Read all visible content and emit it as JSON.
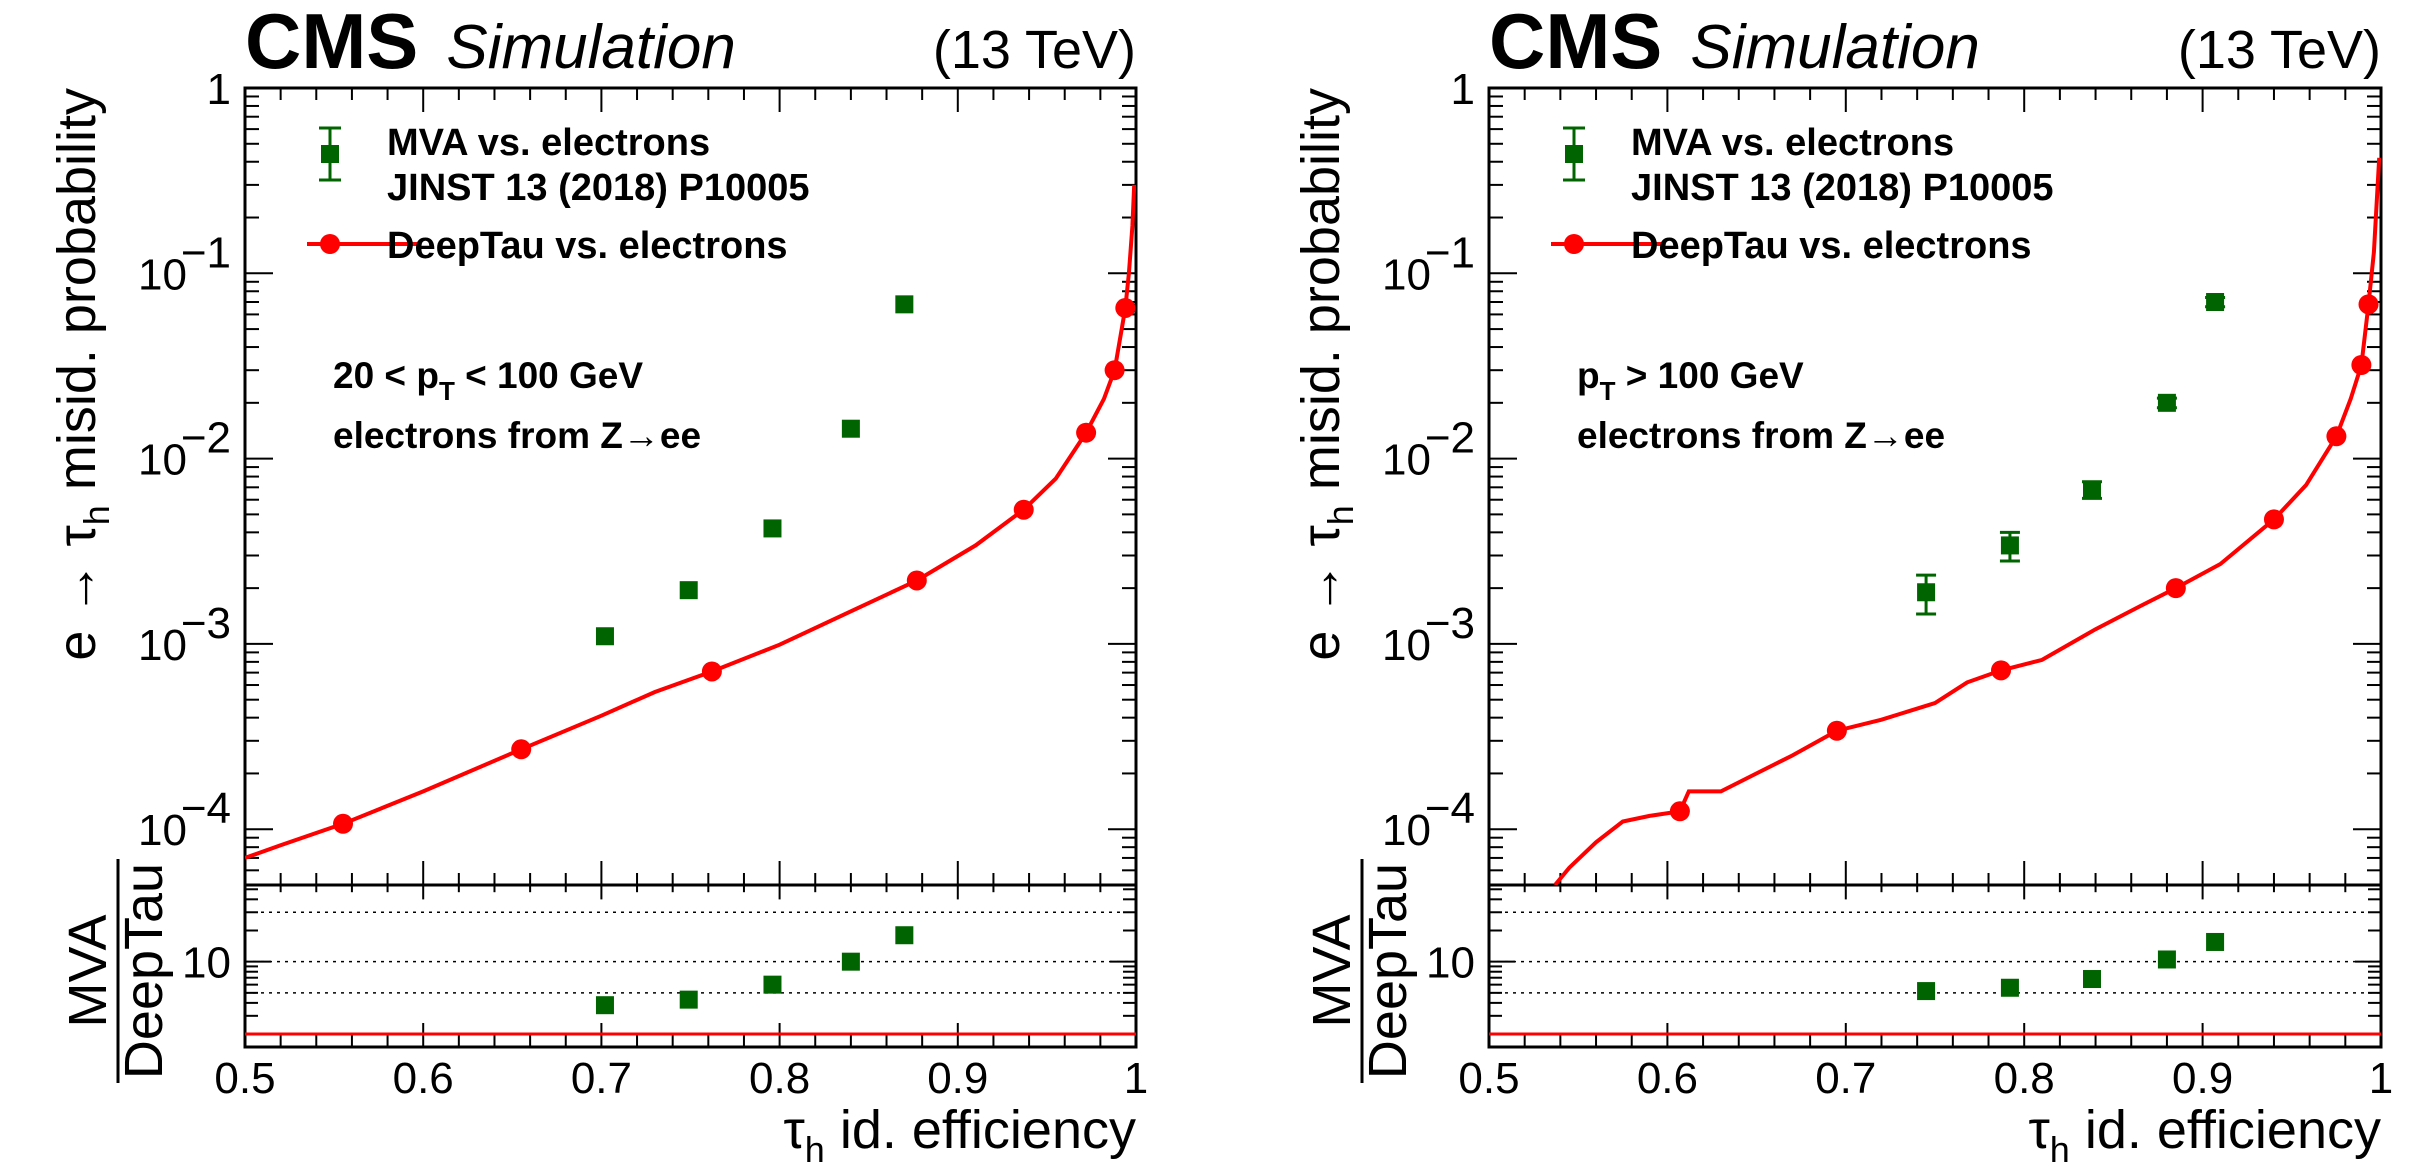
{
  "chart_data": [
    {
      "type": "line",
      "header": {
        "experiment": "CMS",
        "label": "Simulation",
        "energy": "(13 TeV)"
      },
      "ylabel_prefix": "e → τ",
      "ylabel_sub": "h",
      "ylabel_suffix": " misid. probability",
      "xlabel_prefix": "τ",
      "xlabel_sub": "h",
      "xlabel_suffix": " id. efficiency",
      "ratio_ylabel": {
        "numerator": "MVA",
        "denominator": "DeepTau"
      },
      "xlim": [
        0.5,
        1.0
      ],
      "ylim": [
        5e-05,
        1
      ],
      "yscale": "log",
      "ratio_ylim": [
        1.5,
        55
      ],
      "ratio_yscale": "log",
      "ratio_gridlines": [
        5,
        10,
        30
      ],
      "x_ticks": [
        "0.5",
        "0.6",
        "0.7",
        "0.8",
        "0.9",
        "1"
      ],
      "y_ticks": [
        {
          "base": "1",
          "exp": ""
        },
        {
          "base": "10",
          "exp": "−1"
        },
        {
          "base": "10",
          "exp": "−2"
        },
        {
          "base": "10",
          "exp": "−3"
        },
        {
          "base": "10",
          "exp": "−4"
        }
      ],
      "ratio_tick": "10",
      "legend": [
        {
          "line1": "MVA vs. electrons",
          "line2": "JINST 13 (2018) P10005",
          "color": "#006400"
        },
        {
          "line1": "DeepTau vs. electrons",
          "line2": "",
          "color": "#ff0000"
        }
      ],
      "annotation": {
        "line1_prefix": "20 < p",
        "line1_sub": "T",
        "line1_suffix": " < 100 GeV",
        "line2": "electrons from Z→ee"
      },
      "series": [
        {
          "name": "MVA vs. electrons",
          "color": "#006400",
          "marker": "square",
          "points": [
            {
              "x": 0.702,
              "y": 0.0011,
              "err": 0
            },
            {
              "x": 0.749,
              "y": 0.00195,
              "err": 0
            },
            {
              "x": 0.796,
              "y": 0.0042,
              "err": 0
            },
            {
              "x": 0.84,
              "y": 0.0145,
              "err": 0
            },
            {
              "x": 0.87,
              "y": 0.068,
              "err": 0
            }
          ],
          "ratio": [
            3.8,
            4.3,
            6.0,
            10.0,
            18.0
          ]
        },
        {
          "name": "DeepTau vs. electrons",
          "color": "#ff0000",
          "curve": [
            [
              0.5,
              7e-05
            ],
            [
              0.52,
              8.2e-05
            ],
            [
              0.555,
              0.000107
            ],
            [
              0.6,
              0.00016
            ],
            [
              0.655,
              0.00027
            ],
            [
              0.7,
              0.00041
            ],
            [
              0.73,
              0.00055
            ],
            [
              0.762,
              0.00071
            ],
            [
              0.8,
              0.00099
            ],
            [
              0.84,
              0.0015
            ],
            [
              0.877,
              0.0022
            ],
            [
              0.91,
              0.0034
            ],
            [
              0.937,
              0.0053
            ],
            [
              0.955,
              0.0078
            ],
            [
              0.972,
              0.0138
            ],
            [
              0.982,
              0.021
            ],
            [
              0.988,
              0.03
            ],
            [
              0.992,
              0.05
            ],
            [
              0.994,
              0.065
            ],
            [
              0.996,
              0.1
            ],
            [
              0.998,
              0.18
            ],
            [
              0.999,
              0.3
            ]
          ],
          "markers": [
            [
              0.555,
              0.000107
            ],
            [
              0.655,
              0.00027
            ],
            [
              0.762,
              0.00071
            ],
            [
              0.877,
              0.0022
            ],
            [
              0.937,
              0.0053
            ],
            [
              0.972,
              0.0138
            ],
            [
              0.988,
              0.03
            ],
            [
              0.994,
              0.065
            ]
          ]
        }
      ]
    },
    {
      "type": "line",
      "header": {
        "experiment": "CMS",
        "label": "Simulation",
        "energy": "(13 TeV)"
      },
      "ylabel_prefix": "e → τ",
      "ylabel_sub": "h",
      "ylabel_suffix": " misid. probability",
      "xlabel_prefix": "τ",
      "xlabel_sub": "h",
      "xlabel_suffix": " id. efficiency",
      "ratio_ylabel": {
        "numerator": "MVA",
        "denominator": "DeepTau"
      },
      "xlim": [
        0.5,
        1.0
      ],
      "ylim": [
        5e-05,
        1
      ],
      "yscale": "log",
      "ratio_ylim": [
        1.5,
        55
      ],
      "ratio_yscale": "log",
      "ratio_gridlines": [
        5,
        10,
        30
      ],
      "x_ticks": [
        "0.5",
        "0.6",
        "0.7",
        "0.8",
        "0.9",
        "1"
      ],
      "y_ticks": [
        {
          "base": "1",
          "exp": ""
        },
        {
          "base": "10",
          "exp": "−1"
        },
        {
          "base": "10",
          "exp": "−2"
        },
        {
          "base": "10",
          "exp": "−3"
        },
        {
          "base": "10",
          "exp": "−4"
        }
      ],
      "ratio_tick": "10",
      "legend": [
        {
          "line1": "MVA vs. electrons",
          "line2": "JINST 13 (2018) P10005",
          "color": "#006400"
        },
        {
          "line1": "DeepTau vs. electrons",
          "line2": "",
          "color": "#ff0000"
        }
      ],
      "annotation": {
        "line1_prefix": "p",
        "line1_sub": "T",
        "line1_suffix": " > 100 GeV",
        "line2": "electrons from Z→ee"
      },
      "series": [
        {
          "name": "MVA vs. electrons",
          "color": "#006400",
          "marker": "square",
          "points": [
            {
              "x": 0.745,
              "y": 0.0019,
              "err": 0.00045
            },
            {
              "x": 0.792,
              "y": 0.0034,
              "err": 0.0006
            },
            {
              "x": 0.838,
              "y": 0.0068,
              "err": 0.0007
            },
            {
              "x": 0.88,
              "y": 0.02,
              "err": 0.0012
            },
            {
              "x": 0.907,
              "y": 0.07,
              "err": 0.004
            }
          ],
          "ratio": [
            5.2,
            5.6,
            6.8,
            10.5,
            15.5
          ]
        },
        {
          "name": "DeepTau vs. electrons",
          "color": "#ff0000",
          "curve": [
            [
              0.537,
              5e-05
            ],
            [
              0.545,
              6.2e-05
            ],
            [
              0.56,
              8.5e-05
            ],
            [
              0.575,
              0.00011
            ],
            [
              0.59,
              0.000118
            ],
            [
              0.607,
              0.000125
            ],
            [
              0.612,
              0.00016
            ],
            [
              0.63,
              0.00016
            ],
            [
              0.65,
              0.0002
            ],
            [
              0.67,
              0.00025
            ],
            [
              0.695,
              0.00034
            ],
            [
              0.72,
              0.00039
            ],
            [
              0.75,
              0.00048
            ],
            [
              0.768,
              0.00062
            ],
            [
              0.787,
              0.00072
            ],
            [
              0.81,
              0.00082
            ],
            [
              0.84,
              0.0012
            ],
            [
              0.865,
              0.0016
            ],
            [
              0.885,
              0.002
            ],
            [
              0.91,
              0.0027
            ],
            [
              0.94,
              0.0047
            ],
            [
              0.958,
              0.0072
            ],
            [
              0.975,
              0.0132
            ],
            [
              0.983,
              0.021
            ],
            [
              0.989,
              0.032
            ],
            [
              0.993,
              0.068
            ],
            [
              0.996,
              0.13
            ],
            [
              0.999,
              0.42
            ]
          ],
          "markers": [
            [
              0.607,
              0.000125
            ],
            [
              0.695,
              0.00034
            ],
            [
              0.787,
              0.00072
            ],
            [
              0.885,
              0.002
            ],
            [
              0.94,
              0.0047
            ],
            [
              0.975,
              0.0132
            ],
            [
              0.989,
              0.032
            ],
            [
              0.993,
              0.068
            ]
          ]
        }
      ]
    }
  ]
}
